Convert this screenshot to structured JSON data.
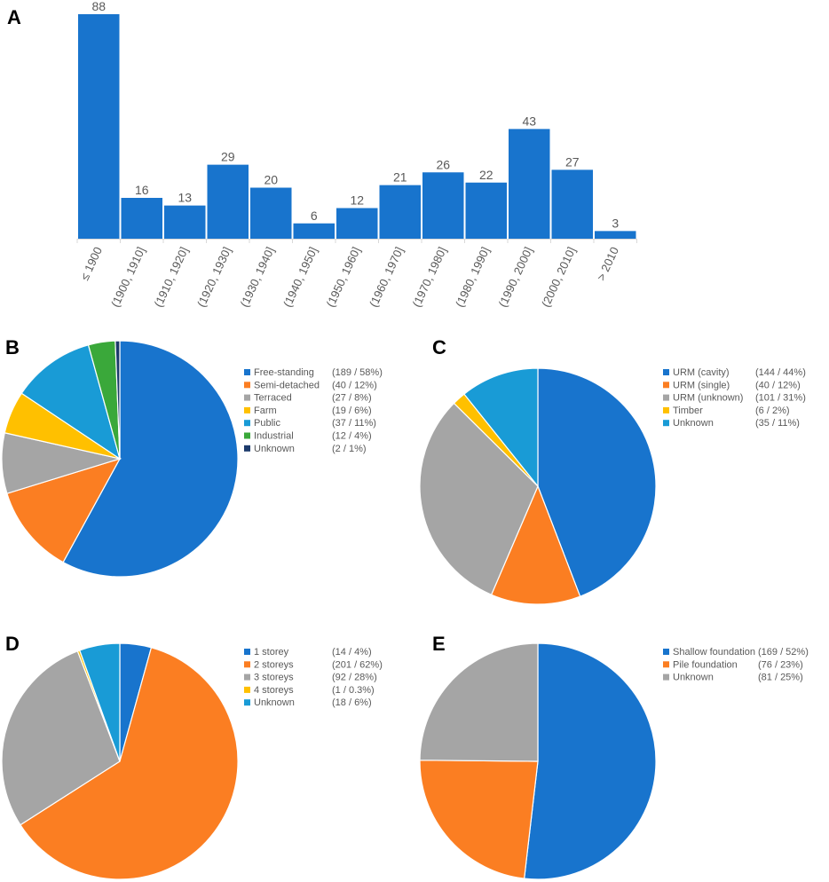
{
  "chart_data": [
    {
      "panel": "A",
      "type": "bar",
      "title": "",
      "xlabel": "",
      "ylabel": "",
      "categories": [
        "≤ 1900",
        "(1900, 1910]",
        "(1910, 1920]",
        "(1920, 1930]",
        "(1930, 1940]",
        "(1940, 1950]",
        "(1950, 1960]",
        "(1960, 1970]",
        "(1970, 1980]",
        "(1980, 1990]",
        "(1990, 2000]",
        "(2000, 2010]",
        "> 2010"
      ],
      "values": [
        88,
        16,
        13,
        29,
        20,
        6,
        12,
        21,
        26,
        22,
        43,
        27,
        3
      ],
      "ylim": [
        0,
        88
      ],
      "color": "#1874cd",
      "grid": false
    },
    {
      "panel": "B",
      "type": "pie",
      "slices": [
        {
          "label": "Free-standing",
          "value": 189,
          "detail": "(189 / 58%)",
          "color": "#1874cd"
        },
        {
          "label": "Semi-detached",
          "value": 40,
          "detail": "(40 / 12%)",
          "color": "#fb7e22"
        },
        {
          "label": "Terraced",
          "value": 27,
          "detail": "(27 / 8%)",
          "color": "#a5a5a5"
        },
        {
          "label": "Farm",
          "value": 19,
          "detail": "(19 / 6%)",
          "color": "#ffc000"
        },
        {
          "label": "Public",
          "value": 37,
          "detail": "(37 / 11%)",
          "color": "#199bd6"
        },
        {
          "label": "Industrial",
          "value": 12,
          "detail": "(12 / 4%)",
          "color": "#3aa83a"
        },
        {
          "label": "Unknown",
          "value": 2,
          "detail": "(2 / 1%)",
          "color": "#1c3a6b"
        }
      ],
      "legend": "right"
    },
    {
      "panel": "C",
      "type": "pie",
      "slices": [
        {
          "label": "URM (cavity)",
          "value": 144,
          "detail": "(144 / 44%)",
          "color": "#1874cd"
        },
        {
          "label": "URM (single)",
          "value": 40,
          "detail": "(40 / 12%)",
          "color": "#fb7e22"
        },
        {
          "label": "URM (unknown)",
          "value": 101,
          "detail": "(101 / 31%)",
          "color": "#a5a5a5"
        },
        {
          "label": "Timber",
          "value": 6,
          "detail": "(6 / 2%)",
          "color": "#ffc000"
        },
        {
          "label": "Unknown",
          "value": 35,
          "detail": "(35 / 11%)",
          "color": "#199bd6"
        }
      ],
      "legend": "right"
    },
    {
      "panel": "D",
      "type": "pie",
      "slices": [
        {
          "label": "1 storey",
          "value": 14,
          "detail": "(14 / 4%)",
          "color": "#1874cd"
        },
        {
          "label": "2 storeys",
          "value": 201,
          "detail": "(201 / 62%)",
          "color": "#fb7e22"
        },
        {
          "label": "3 storeys",
          "value": 92,
          "detail": "(92 / 28%)",
          "color": "#a5a5a5"
        },
        {
          "label": "4 storeys",
          "value": 1,
          "detail": "(1 / 0.3%)",
          "color": "#ffc000"
        },
        {
          "label": "Unknown",
          "value": 18,
          "detail": "(18 / 6%)",
          "color": "#199bd6"
        }
      ],
      "legend": "right"
    },
    {
      "panel": "E",
      "type": "pie",
      "slices": [
        {
          "label": "Shallow foundation",
          "value": 169,
          "detail": "(169 / 52%)",
          "color": "#1874cd"
        },
        {
          "label": "Pile foundation",
          "value": 76,
          "detail": "(76 / 23%)",
          "color": "#fb7e22"
        },
        {
          "label": "Unknown",
          "value": 81,
          "detail": "(81 / 25%)",
          "color": "#a5a5a5"
        }
      ],
      "legend": "right"
    }
  ]
}
